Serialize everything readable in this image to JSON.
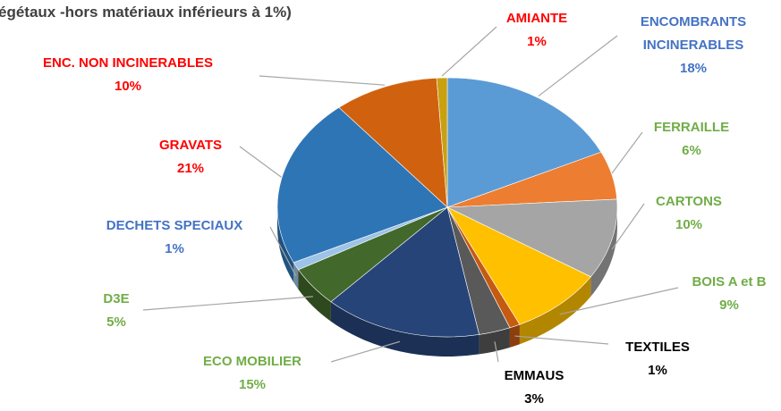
{
  "chart_data": {
    "type": "pie",
    "title": "égétaux -hors matériaux inférieurs à 1%)",
    "categories": [
      "ENCOMBRANTS INCINERABLES",
      "FERRAILLE",
      "CARTONS",
      "BOIS A et B",
      "TEXTILES",
      "EMMAUS",
      "ECO MOBILIER",
      "D3E",
      "DECHETS SPECIAUX",
      "GRAVATS",
      "ENC. NON INCINERABLES",
      "AMIANTE"
    ],
    "values": [
      18,
      6,
      10,
      9,
      1,
      3,
      15,
      5,
      1,
      21,
      10,
      1
    ],
    "value_labels": [
      "18%",
      "6%",
      "10%",
      "9%",
      "1%",
      "3%",
      "15%",
      "5%",
      "1%",
      "21%",
      "10%",
      "1%"
    ],
    "colors": [
      "#5b9bd5",
      "#ed7d31",
      "#a5a5a5",
      "#ffc000",
      "#c55a11",
      "#595959",
      "#264478",
      "#43682b",
      "#9dc3e6",
      "#2e75b6",
      "#d0620f",
      "#c9a010"
    ],
    "label_colors": [
      "#4472c4",
      "#70ad47",
      "#70ad47",
      "#70ad47",
      "#000000",
      "#000000",
      "#70ad47",
      "#70ad47",
      "#4472c4",
      "#ff0000",
      "#ff0000",
      "#ff0000"
    ]
  }
}
